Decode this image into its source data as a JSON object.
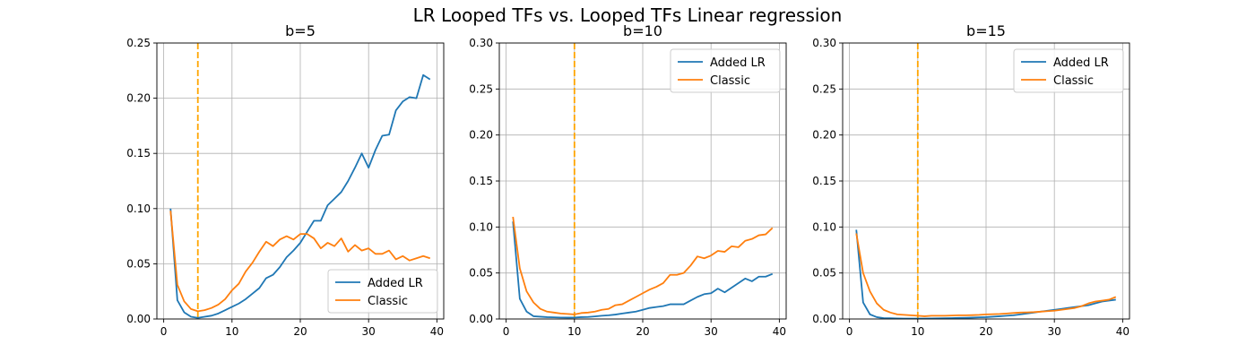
{
  "figure_title": "LR Looped TFs vs. Looped TFs Linear regression",
  "colors": {
    "added_lr": "#1f77b4",
    "classic": "#ff7f0e",
    "vline": "#ffa500",
    "grid": "#b0b0b0"
  },
  "chart_data": [
    {
      "type": "line",
      "title": "b=5",
      "xlabel": "",
      "ylabel": "",
      "xlim": [
        -1,
        41
      ],
      "ylim": [
        0,
        0.25
      ],
      "xticks": [
        0,
        10,
        20,
        30,
        40
      ],
      "yticks": [
        0.0,
        0.05,
        0.1,
        0.15,
        0.2,
        0.25
      ],
      "ytick_labels": [
        "0.00",
        "0.05",
        "0.10",
        "0.15",
        "0.20",
        "0.25"
      ],
      "grid": true,
      "legend_position": "lower-right",
      "vline_x": 5,
      "x": [
        1,
        2,
        3,
        4,
        5,
        6,
        7,
        8,
        9,
        10,
        11,
        12,
        13,
        14,
        15,
        16,
        17,
        18,
        19,
        20,
        21,
        22,
        23,
        24,
        25,
        26,
        27,
        28,
        29,
        30,
        31,
        32,
        33,
        34,
        35,
        36,
        37,
        38,
        39
      ],
      "series": [
        {
          "name": "Added LR",
          "color": "#1f77b4",
          "values": [
            0.1,
            0.017,
            0.006,
            0.002,
            0.001,
            0.002,
            0.003,
            0.005,
            0.008,
            0.011,
            0.014,
            0.018,
            0.023,
            0.028,
            0.037,
            0.04,
            0.047,
            0.056,
            0.062,
            0.069,
            0.079,
            0.089,
            0.089,
            0.103,
            0.109,
            0.115,
            0.125,
            0.137,
            0.15,
            0.137,
            0.153,
            0.166,
            0.167,
            0.189,
            0.197,
            0.201,
            0.2,
            0.221,
            0.217
          ]
        },
        {
          "name": "Classic",
          "color": "#ff7f0e",
          "values": [
            0.098,
            0.031,
            0.016,
            0.009,
            0.007,
            0.008,
            0.01,
            0.013,
            0.018,
            0.026,
            0.032,
            0.043,
            0.051,
            0.061,
            0.07,
            0.066,
            0.072,
            0.075,
            0.072,
            0.077,
            0.077,
            0.073,
            0.064,
            0.069,
            0.066,
            0.073,
            0.061,
            0.067,
            0.062,
            0.064,
            0.059,
            0.059,
            0.062,
            0.054,
            0.057,
            0.053,
            0.055,
            0.057,
            0.055
          ]
        }
      ]
    },
    {
      "type": "line",
      "title": "b=10",
      "xlabel": "",
      "ylabel": "",
      "xlim": [
        -1,
        41
      ],
      "ylim": [
        0,
        0.3
      ],
      "xticks": [
        0,
        10,
        20,
        30,
        40
      ],
      "yticks": [
        0.0,
        0.05,
        0.1,
        0.15,
        0.2,
        0.25,
        0.3
      ],
      "ytick_labels": [
        "0.00",
        "0.05",
        "0.10",
        "0.15",
        "0.20",
        "0.25",
        "0.30"
      ],
      "grid": true,
      "legend_position": "upper-right",
      "vline_x": 10,
      "x": [
        1,
        2,
        3,
        4,
        5,
        6,
        7,
        8,
        9,
        10,
        11,
        12,
        13,
        14,
        15,
        16,
        17,
        18,
        19,
        20,
        21,
        22,
        23,
        24,
        25,
        26,
        27,
        28,
        29,
        30,
        31,
        32,
        33,
        34,
        35,
        36,
        37,
        38,
        39
      ],
      "series": [
        {
          "name": "Added LR",
          "color": "#1f77b4",
          "values": [
            0.106,
            0.022,
            0.008,
            0.003,
            0.0025,
            0.002,
            0.0018,
            0.0016,
            0.0015,
            0.0016,
            0.002,
            0.0022,
            0.0028,
            0.0035,
            0.004,
            0.0048,
            0.006,
            0.007,
            0.008,
            0.01,
            0.012,
            0.013,
            0.014,
            0.016,
            0.016,
            0.016,
            0.02,
            0.024,
            0.027,
            0.028,
            0.033,
            0.029,
            0.034,
            0.039,
            0.044,
            0.041,
            0.046,
            0.046,
            0.049
          ]
        },
        {
          "name": "Classic",
          "color": "#ff7f0e",
          "values": [
            0.111,
            0.055,
            0.03,
            0.018,
            0.011,
            0.008,
            0.007,
            0.006,
            0.0055,
            0.005,
            0.0065,
            0.007,
            0.008,
            0.01,
            0.011,
            0.015,
            0.016,
            0.02,
            0.024,
            0.028,
            0.032,
            0.035,
            0.039,
            0.048,
            0.048,
            0.05,
            0.058,
            0.068,
            0.066,
            0.069,
            0.074,
            0.073,
            0.079,
            0.078,
            0.085,
            0.087,
            0.091,
            0.092,
            0.099
          ]
        }
      ]
    },
    {
      "type": "line",
      "title": "b=15",
      "xlabel": "",
      "ylabel": "",
      "xlim": [
        -1,
        41
      ],
      "ylim": [
        0,
        0.3
      ],
      "xticks": [
        0,
        10,
        20,
        30,
        40
      ],
      "yticks": [
        0.0,
        0.05,
        0.1,
        0.15,
        0.2,
        0.25,
        0.3
      ],
      "ytick_labels": [
        "0.00",
        "0.05",
        "0.10",
        "0.15",
        "0.20",
        "0.25",
        "0.30"
      ],
      "grid": true,
      "legend_position": "upper-right",
      "vline_x": 10,
      "x": [
        1,
        2,
        3,
        4,
        5,
        6,
        7,
        8,
        9,
        10,
        11,
        12,
        13,
        14,
        15,
        16,
        17,
        18,
        19,
        20,
        21,
        22,
        23,
        24,
        25,
        26,
        27,
        28,
        29,
        30,
        31,
        32,
        33,
        34,
        35,
        36,
        37,
        38,
        39
      ],
      "series": [
        {
          "name": "Added LR",
          "color": "#1f77b4",
          "values": [
            0.097,
            0.018,
            0.005,
            0.002,
            0.001,
            0.0008,
            0.0006,
            0.0005,
            0.0005,
            0.0005,
            0.0005,
            0.0006,
            0.0007,
            0.0008,
            0.001,
            0.0012,
            0.0013,
            0.0015,
            0.0018,
            0.002,
            0.0025,
            0.003,
            0.0035,
            0.004,
            0.005,
            0.006,
            0.007,
            0.008,
            0.009,
            0.01,
            0.011,
            0.012,
            0.013,
            0.014,
            0.015,
            0.017,
            0.019,
            0.02,
            0.021
          ]
        },
        {
          "name": "Classic",
          "color": "#ff7f0e",
          "values": [
            0.093,
            0.05,
            0.03,
            0.017,
            0.01,
            0.007,
            0.005,
            0.0045,
            0.004,
            0.0035,
            0.003,
            0.0035,
            0.0035,
            0.0035,
            0.0038,
            0.004,
            0.004,
            0.0042,
            0.0045,
            0.005,
            0.0052,
            0.0055,
            0.006,
            0.0065,
            0.007,
            0.0072,
            0.0075,
            0.008,
            0.0085,
            0.009,
            0.01,
            0.011,
            0.012,
            0.014,
            0.017,
            0.019,
            0.02,
            0.021,
            0.024
          ]
        }
      ]
    }
  ]
}
